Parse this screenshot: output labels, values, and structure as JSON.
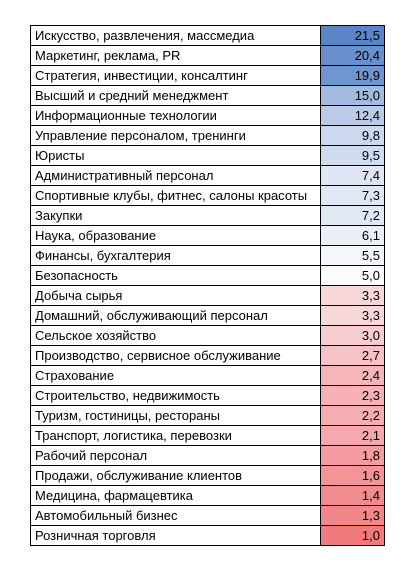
{
  "table": {
    "rows": [
      [
        "Искусство, развлечения, массмедиа",
        "21,5",
        "#5b85c9"
      ],
      [
        "Маркетинг, реклама, PR",
        "20,4",
        "#6a8fcd"
      ],
      [
        "Стратегия, инвестиции, консалтинг",
        "19,9",
        "#7096cf"
      ],
      [
        "Высший и средний менеджмент",
        "15,0",
        "#a4bbe0"
      ],
      [
        "Информационные технологии",
        "12,4",
        "#b9cbe8"
      ],
      [
        "Управление персоналом, тренинги",
        "9,8",
        "#cbd8ee"
      ],
      [
        "Юристы",
        "9,5",
        "#cfdbef"
      ],
      [
        "Административный персонал",
        "7,4",
        "#dfe7f5"
      ],
      [
        "Спортивные клубы, фитнес, салоны красоты",
        "7,3",
        "#e0e8f5"
      ],
      [
        "Закупки",
        "7,2",
        "#e1e9f5"
      ],
      [
        "Наука, образование",
        "6,1",
        "#ebf0f8"
      ],
      [
        "Финансы, бухгалтерия",
        "5,5",
        "#f3f6fb"
      ],
      [
        "Безопасность",
        "5,0",
        "#fcfcff"
      ],
      [
        "Добыча сырья",
        "3,3",
        "#f8d7d9"
      ],
      [
        "Домашний, обслуживающий персонал",
        "3,3",
        "#f8d7d9"
      ],
      [
        "Сельское хозяйство",
        "3,0",
        "#f8cdd0"
      ],
      [
        "Производство, сервисное обслуживание",
        "2,7",
        "#f7c2c5"
      ],
      [
        "Страхование",
        "2,4",
        "#f6b5b8"
      ],
      [
        "Строительство, недвижимость",
        "2,3",
        "#f6b1b4"
      ],
      [
        "Туризм, гостиницы, рестораны",
        "2,2",
        "#f5adb0"
      ],
      [
        "Транспорт, логистика, перевозки",
        "2,1",
        "#f5a9ac"
      ],
      [
        "Рабочий персонал",
        "1,8",
        "#f49c9f"
      ],
      [
        "Продажи, обслуживание клиентов",
        "1,6",
        "#f39497"
      ],
      [
        "Медицина, фармацевтика",
        "1,4",
        "#f28b8e"
      ],
      [
        "Автомобильный бизнес",
        "1,3",
        "#f2878a"
      ],
      [
        "Розничная торговля",
        "1,0",
        "#f17a7d"
      ]
    ]
  }
}
